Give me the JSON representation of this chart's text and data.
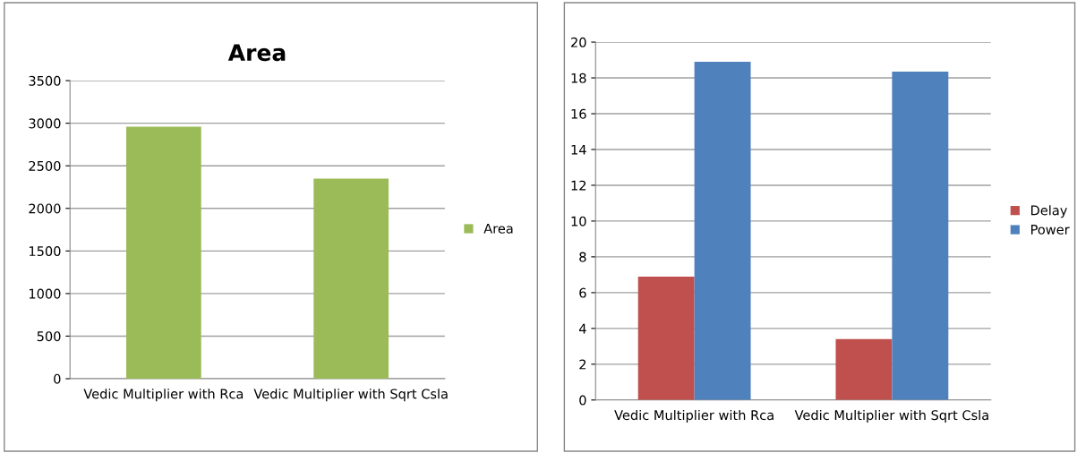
{
  "chart_data": [
    {
      "type": "bar",
      "title": "Area",
      "categories": [
        "Vedic Multiplier with Rca",
        "Vedic Multiplier with Sqrt Csla"
      ],
      "series": [
        {
          "name": "Area",
          "color": "#9bbb59",
          "values": [
            2960,
            2350
          ]
        }
      ],
      "ylim": [
        0,
        3500
      ],
      "yticks": [
        0,
        500,
        1000,
        1500,
        2000,
        2500,
        3000,
        3500
      ],
      "grid": "y",
      "legend": "right"
    },
    {
      "type": "bar",
      "categories": [
        "Vedic Multiplier with Rca",
        "Vedic Multiplier with Sqrt Csla"
      ],
      "series": [
        {
          "name": "Delay",
          "color": "#c0504d",
          "values": [
            6.9,
            3.4
          ]
        },
        {
          "name": "Power",
          "color": "#4f81bd",
          "values": [
            18.9,
            18.35
          ]
        }
      ],
      "ylim": [
        0,
        20
      ],
      "yticks": [
        0,
        2,
        4,
        6,
        8,
        10,
        12,
        14,
        16,
        18,
        20
      ],
      "grid": "y",
      "legend": "right"
    }
  ]
}
